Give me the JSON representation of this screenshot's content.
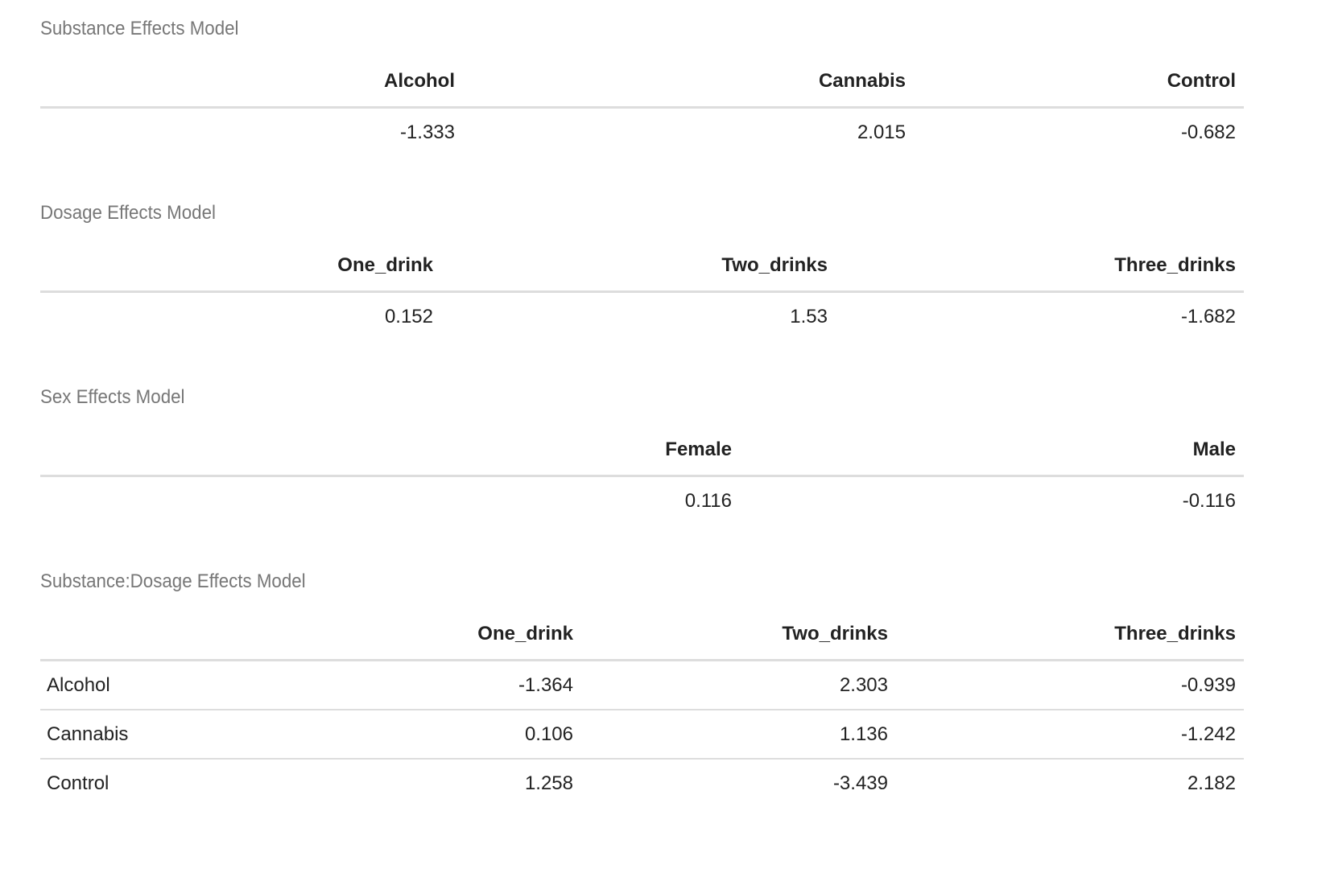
{
  "tables": [
    {
      "caption": "Substance Effects Model",
      "columns": [
        "",
        "Alcohol",
        "Cannabis",
        "Control"
      ],
      "rows": [
        [
          "",
          "-1.333",
          "2.015",
          "-0.682"
        ]
      ]
    },
    {
      "caption": "Dosage Effects Model",
      "columns": [
        "",
        "One_drink",
        "Two_drinks",
        "Three_drinks"
      ],
      "rows": [
        [
          "",
          "0.152",
          "1.53",
          "-1.682"
        ]
      ]
    },
    {
      "caption": "Sex Effects Model",
      "columns": [
        "",
        "Female",
        "Male"
      ],
      "rows": [
        [
          "",
          "0.116",
          "-0.116"
        ]
      ]
    },
    {
      "caption": "Substance:Dosage Effects Model",
      "columns": [
        "",
        "One_drink",
        "Two_drinks",
        "Three_drinks"
      ],
      "rows": [
        [
          "Alcohol",
          "-1.364",
          "2.303",
          "-0.939"
        ],
        [
          "Cannabis",
          "0.106",
          "1.136",
          "-1.242"
        ],
        [
          "Control",
          "1.258",
          "-3.439",
          "2.182"
        ]
      ]
    }
  ]
}
